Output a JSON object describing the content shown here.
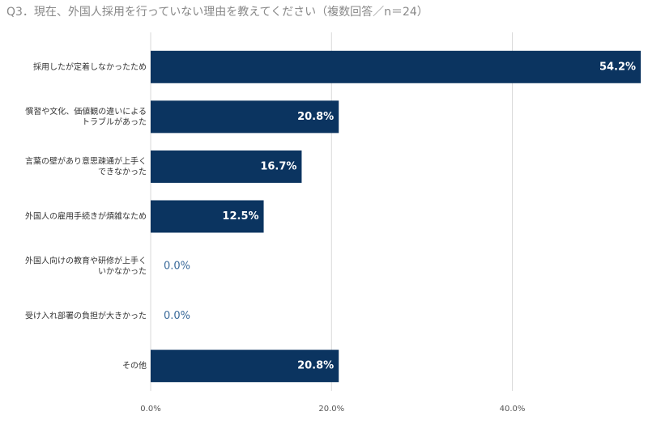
{
  "chart_data": {
    "type": "bar",
    "orientation": "horizontal",
    "title": "Q3．現在、外国人採用を行っていない理由を教えてください（複数回答／n＝24）",
    "categories": [
      "採用したが定着しなかったため",
      "慣習や文化、価値観の違いによる\nトラブルがあった",
      "言葉の壁があり意思疎通が上手く\nできなかった",
      "外国人の雇用手続きが煩雑なため",
      "外国人向けの教育や研修が上手く\nいかなかった",
      "受け入れ部署の負担が大きかった",
      "その他"
    ],
    "values": [
      54.2,
      20.8,
      16.7,
      12.5,
      0,
      0,
      20.8
    ],
    "value_labels": [
      "54.2%",
      "20.8%",
      "16.7%",
      "12.5%",
      "0.0%",
      "0.0%",
      "20.8%"
    ],
    "color": "#0b3460",
    "xlim": [
      0,
      55
    ],
    "xticks": [
      {
        "value": 0,
        "label": "0.0%"
      },
      {
        "value": 20,
        "label": "20.0%"
      },
      {
        "value": 40,
        "label": "40.0%"
      }
    ],
    "grid": true
  }
}
